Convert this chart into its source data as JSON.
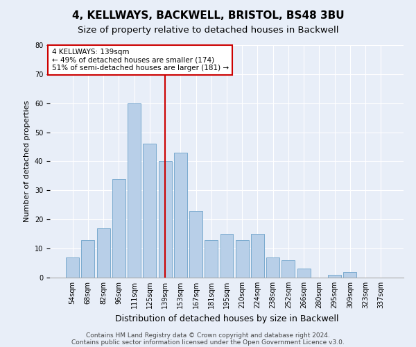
{
  "title1": "4, KELLWAYS, BACKWELL, BRISTOL, BS48 3BU",
  "title2": "Size of property relative to detached houses in Backwell",
  "xlabel": "Distribution of detached houses by size in Backwell",
  "ylabel": "Number of detached properties",
  "categories": [
    "54sqm",
    "68sqm",
    "82sqm",
    "96sqm",
    "111sqm",
    "125sqm",
    "139sqm",
    "153sqm",
    "167sqm",
    "181sqm",
    "195sqm",
    "210sqm",
    "224sqm",
    "238sqm",
    "252sqm",
    "266sqm",
    "280sqm",
    "295sqm",
    "309sqm",
    "323sqm",
    "337sqm"
  ],
  "values": [
    7,
    13,
    17,
    34,
    60,
    46,
    40,
    43,
    23,
    13,
    15,
    13,
    15,
    7,
    6,
    3,
    0,
    1,
    2,
    0,
    0
  ],
  "bar_color": "#b8cfe8",
  "bar_edgecolor": "#7aaacf",
  "vline_x_index": 6,
  "vline_color": "#cc0000",
  "annotation_line1": "4 KELLWAYS: 139sqm",
  "annotation_line2": "← 49% of detached houses are smaller (174)",
  "annotation_line3": "51% of semi-detached houses are larger (181) →",
  "annotation_box_color": "#ffffff",
  "annotation_box_edgecolor": "#cc0000",
  "ylim": [
    0,
    80
  ],
  "yticks": [
    0,
    10,
    20,
    30,
    40,
    50,
    60,
    70,
    80
  ],
  "footer1": "Contains HM Land Registry data © Crown copyright and database right 2024.",
  "footer2": "Contains public sector information licensed under the Open Government Licence v3.0.",
  "background_color": "#e8eef8",
  "grid_color": "#ffffff",
  "title1_fontsize": 11,
  "title2_fontsize": 9.5,
  "xlabel_fontsize": 9,
  "ylabel_fontsize": 8,
  "footer_fontsize": 6.5,
  "tick_fontsize": 7,
  "annot_fontsize": 7.5
}
